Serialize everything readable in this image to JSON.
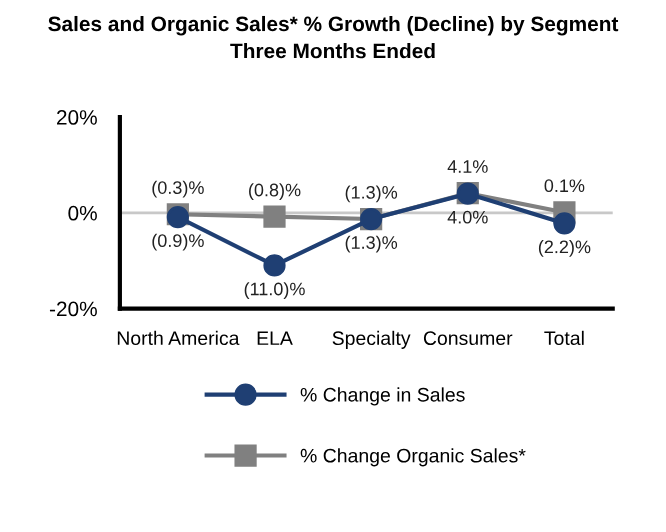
{
  "chart_data": {
    "type": "line",
    "title": "Sales and Organic Sales* % Growth (Decline) by Segment\nThree Months Ended",
    "categories": [
      "North America",
      "ELA",
      "Specialty",
      "Consumer",
      "Total"
    ],
    "series": [
      {
        "name": "% Change in Sales",
        "color": "#1f3f73",
        "marker": "circle",
        "values": [
          -0.9,
          -11.0,
          -1.3,
          4.0,
          -2.2
        ],
        "value_labels": [
          "(0.9)%",
          "(11.0)%",
          "(1.3)%",
          "4.0%",
          "(2.2)%"
        ]
      },
      {
        "name": "% Change Organic Sales*",
        "color": "#808080",
        "marker": "square",
        "values": [
          -0.3,
          -0.8,
          -1.3,
          4.1,
          0.1
        ],
        "value_labels": [
          "(0.3)%",
          "(0.8)%",
          "(1.3)%",
          "4.1%",
          "0.1%"
        ]
      }
    ],
    "ylim": [
      -20,
      20
    ],
    "yticks": [
      {
        "value": -20,
        "label": "-20%"
      },
      {
        "value": 0,
        "label": "0%"
      },
      {
        "value": 20,
        "label": "20%"
      }
    ],
    "ref_lines": [
      {
        "axis": "y",
        "value": 0,
        "color": "#c8c8c8"
      }
    ],
    "grid": false,
    "legend": "bottom"
  }
}
